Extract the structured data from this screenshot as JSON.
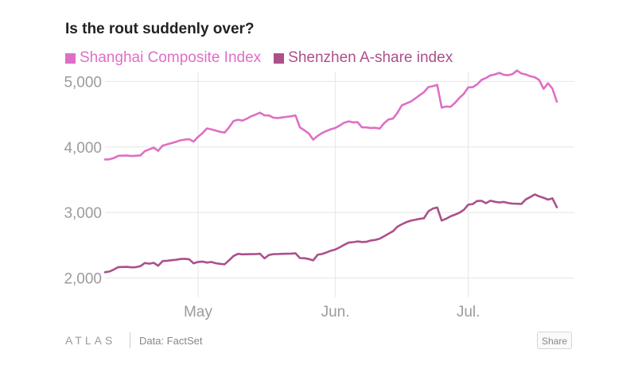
{
  "title": "Is the rout suddenly over?",
  "footer": {
    "logo": "ATLAS",
    "source": "Data: FactSet",
    "share_label": "Share"
  },
  "colors": {
    "shanghai": "#de6fc6",
    "shenzhen": "#ac508b",
    "grid": "#e6e6e6",
    "tick": "#9b9b9b"
  },
  "chart_data": {
    "type": "line",
    "title": "Is the rout suddenly over?",
    "xlabel": "",
    "ylabel": "",
    "ylim": [
      1850,
      5150
    ],
    "y_ticks": [
      2000,
      3000,
      4000,
      5000
    ],
    "y_tick_labels": [
      "2,000",
      "3,000",
      "4,000",
      "5,000"
    ],
    "x_ticks": [
      {
        "label": "May",
        "x": 21
      },
      {
        "label": "Jun.",
        "x": 52
      },
      {
        "label": "Jul.",
        "x": 82
      }
    ],
    "xlim": [
      0,
      102
    ],
    "legend_position": "top-left",
    "series": [
      {
        "name": "Shanghai Composite Index",
        "x": [
          0,
          1,
          2,
          3,
          4,
          5,
          6,
          7,
          8,
          9,
          10,
          11,
          12,
          13,
          14,
          15,
          16,
          17,
          18,
          19,
          20,
          21,
          22,
          23,
          24,
          25,
          26,
          27,
          28,
          29,
          30,
          31,
          32,
          33,
          34,
          35,
          36,
          37,
          38,
          39,
          40,
          41,
          42,
          43,
          44,
          45,
          46,
          47,
          48,
          49,
          50,
          51,
          52,
          53,
          54,
          55,
          56,
          57,
          58,
          59,
          60,
          61,
          62,
          63,
          64,
          65,
          66,
          67,
          68,
          69,
          70,
          71,
          72,
          73,
          74,
          75,
          76,
          77,
          78,
          79,
          80,
          81,
          82,
          83,
          84,
          85,
          86,
          87,
          88,
          89,
          90,
          91,
          92,
          93,
          94,
          95,
          96,
          97,
          98,
          99,
          100,
          101,
          102
        ],
        "values": [
          3808,
          3812,
          3830,
          3865,
          3868,
          3869,
          3862,
          3866,
          3871,
          3937,
          3963,
          3990,
          3940,
          4020,
          4040,
          4058,
          4077,
          4100,
          4112,
          4119,
          4082,
          4153,
          4210,
          4282,
          4269,
          4250,
          4230,
          4220,
          4298,
          4394,
          4416,
          4402,
          4431,
          4468,
          4494,
          4523,
          4481,
          4480,
          4447,
          4441,
          4450,
          4460,
          4468,
          4480,
          4298,
          4255,
          4205,
          4112,
          4170,
          4212,
          4244,
          4270,
          4290,
          4327,
          4371,
          4391,
          4375,
          4380,
          4300,
          4298,
          4290,
          4292,
          4280,
          4362,
          4420,
          4433,
          4520,
          4634,
          4664,
          4692,
          4739,
          4789,
          4836,
          4914,
          4927,
          4947,
          4600,
          4617,
          4613,
          4672,
          4749,
          4812,
          4909,
          4912,
          4955,
          5023,
          5052,
          5092,
          5106,
          5131,
          5100,
          5094,
          5112,
          5166,
          5121,
          5106,
          5078,
          5064,
          5023,
          4887,
          4972,
          4892,
          4690
        ]
      },
      {
        "name": "Shenzhen A-share index",
        "values": [
          2089,
          2100,
          2130,
          2167,
          2169,
          2170,
          2163,
          2167,
          2181,
          2230,
          2219,
          2232,
          2187,
          2259,
          2264,
          2272,
          2278,
          2290,
          2294,
          2286,
          2224,
          2246,
          2252,
          2236,
          2245,
          2226,
          2216,
          2210,
          2271,
          2337,
          2369,
          2362,
          2363,
          2365,
          2366,
          2370,
          2300,
          2352,
          2365,
          2366,
          2369,
          2370,
          2373,
          2378,
          2305,
          2302,
          2291,
          2270,
          2356,
          2367,
          2391,
          2418,
          2436,
          2469,
          2507,
          2540,
          2548,
          2558,
          2550,
          2552,
          2573,
          2581,
          2601,
          2637,
          2676,
          2714,
          2783,
          2820,
          2852,
          2875,
          2888,
          2903,
          2911,
          3018,
          3060,
          3076,
          2878,
          2904,
          2942,
          2967,
          2996,
          3041,
          3119,
          3129,
          3176,
          3179,
          3142,
          3180,
          3164,
          3153,
          3161,
          3144,
          3136,
          3133,
          3131,
          3200,
          3236,
          3275,
          3246,
          3224,
          3197,
          3216,
          3080
        ]
      }
    ]
  }
}
